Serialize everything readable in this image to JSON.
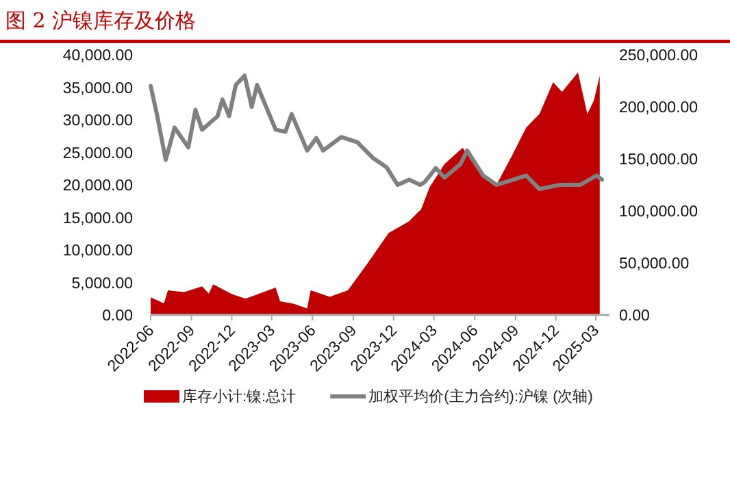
{
  "chart_data": {
    "type": "area",
    "title": "图 2 沪镍库存及价格",
    "legend": "bottom",
    "grid": false,
    "xlim": [
      "2022-06-01",
      "2025-04-01"
    ],
    "xticks": [
      {
        "value": "2022-06-01",
        "label": "2022-06"
      },
      {
        "value": "2022-09-01",
        "label": "2022-09"
      },
      {
        "value": "2022-12-01",
        "label": "2022-12"
      },
      {
        "value": "2023-03-01",
        "label": "2023-03"
      },
      {
        "value": "2023-06-01",
        "label": "2023-06"
      },
      {
        "value": "2023-09-01",
        "label": "2023-09"
      },
      {
        "value": "2023-12-01",
        "label": "2023-12"
      },
      {
        "value": "2024-03-01",
        "label": "2024-03"
      },
      {
        "value": "2024-06-01",
        "label": "2024-06"
      },
      {
        "value": "2024-09-01",
        "label": "2024-09"
      },
      {
        "value": "2024-12-01",
        "label": "2024-12"
      },
      {
        "value": "2025-03-01",
        "label": "2025-03"
      }
    ],
    "ylim": [
      0,
      40000
    ],
    "yticks": [
      {
        "value": 0,
        "label": "0.00"
      },
      {
        "value": 5000,
        "label": "5,000.00"
      },
      {
        "value": 10000,
        "label": "10,000.00"
      },
      {
        "value": 15000,
        "label": "15,000.00"
      },
      {
        "value": 20000,
        "label": "20,000.00"
      },
      {
        "value": 25000,
        "label": "25,000.00"
      },
      {
        "value": 30000,
        "label": "30,000.00"
      },
      {
        "value": 35000,
        "label": "35,000.00"
      },
      {
        "value": 40000,
        "label": "40,000.00"
      }
    ],
    "y2lim": [
      0,
      250000
    ],
    "y2ticks": [
      {
        "value": 0,
        "label": "0.00"
      },
      {
        "value": 50000,
        "label": "50,000.00"
      },
      {
        "value": 100000,
        "label": "100,000.00"
      },
      {
        "value": 150000,
        "label": "150,000.00"
      },
      {
        "value": 200000,
        "label": "200,000.00"
      },
      {
        "value": 250000,
        "label": "250,000.00"
      }
    ],
    "series": [
      {
        "name": "库存小计:镍:总计",
        "color": "#c00000",
        "x": [
          "2022-06-01",
          "2022-07-01",
          "2022-07-10",
          "2022-08-15",
          "2022-09-25",
          "2022-10-10",
          "2022-10-20",
          "2022-12-01",
          "2023-01-01",
          "2023-02-10",
          "2023-03-10",
          "2023-03-20",
          "2023-04-20",
          "2023-05-20",
          "2023-05-28",
          "2023-07-10",
          "2023-08-20",
          "2023-10-01",
          "2023-11-20",
          "2024-01-05",
          "2024-01-25",
          "2024-02-01",
          "2024-02-20",
          "2024-03-25",
          "2024-05-05",
          "2024-06-05",
          "2024-07-20",
          "2024-08-25",
          "2024-09-25",
          "2024-10-25",
          "2024-11-25",
          "2024-12-15",
          "2025-01-20",
          "2025-02-10",
          "2025-02-25",
          "2025-03-10"
        ],
        "values": [
          2700,
          1800,
          3800,
          3500,
          4400,
          3300,
          4700,
          3200,
          2500,
          3500,
          4200,
          2100,
          1700,
          1000,
          3800,
          2800,
          3800,
          7700,
          12600,
          14400,
          15800,
          16200,
          19600,
          23200,
          25700,
          22500,
          20000,
          24600,
          28800,
          30900,
          35800,
          34300,
          37300,
          30900,
          33000,
          36800
        ]
      },
      {
        "name": "加权平均价(主力合约):沪镍  (次轴)",
        "type": "line",
        "axis": "y2",
        "color": "#808080",
        "x": [
          "2022-06-01",
          "2022-06-15",
          "2022-07-05",
          "2022-07-25",
          "2022-08-25",
          "2022-09-10",
          "2022-09-25",
          "2022-10-30",
          "2022-11-10",
          "2022-11-25",
          "2022-12-10",
          "2022-12-30",
          "2023-01-15",
          "2023-01-27",
          "2023-03-10",
          "2023-04-01",
          "2023-04-15",
          "2023-05-20",
          "2023-06-10",
          "2023-06-25",
          "2023-08-05",
          "2023-09-10",
          "2023-10-15",
          "2023-11-15",
          "2023-12-10",
          "2024-01-05",
          "2024-01-30",
          "2024-02-10",
          "2024-03-05",
          "2024-03-25",
          "2024-04-30",
          "2024-05-15",
          "2024-06-20",
          "2024-07-20",
          "2024-08-20",
          "2024-09-25",
          "2024-10-25",
          "2024-12-10",
          "2025-01-25",
          "2025-03-03",
          "2025-03-15"
        ],
        "values": [
          220000,
          193000,
          149000,
          180000,
          161000,
          197000,
          178000,
          191000,
          207000,
          191000,
          221000,
          230000,
          200000,
          221000,
          178000,
          176000,
          193000,
          158000,
          170000,
          158000,
          171000,
          166000,
          151000,
          142000,
          125000,
          130000,
          125000,
          128000,
          141000,
          132000,
          145000,
          158000,
          134000,
          125000,
          129000,
          134000,
          121000,
          125000,
          125000,
          134000,
          130000
        ]
      }
    ]
  }
}
